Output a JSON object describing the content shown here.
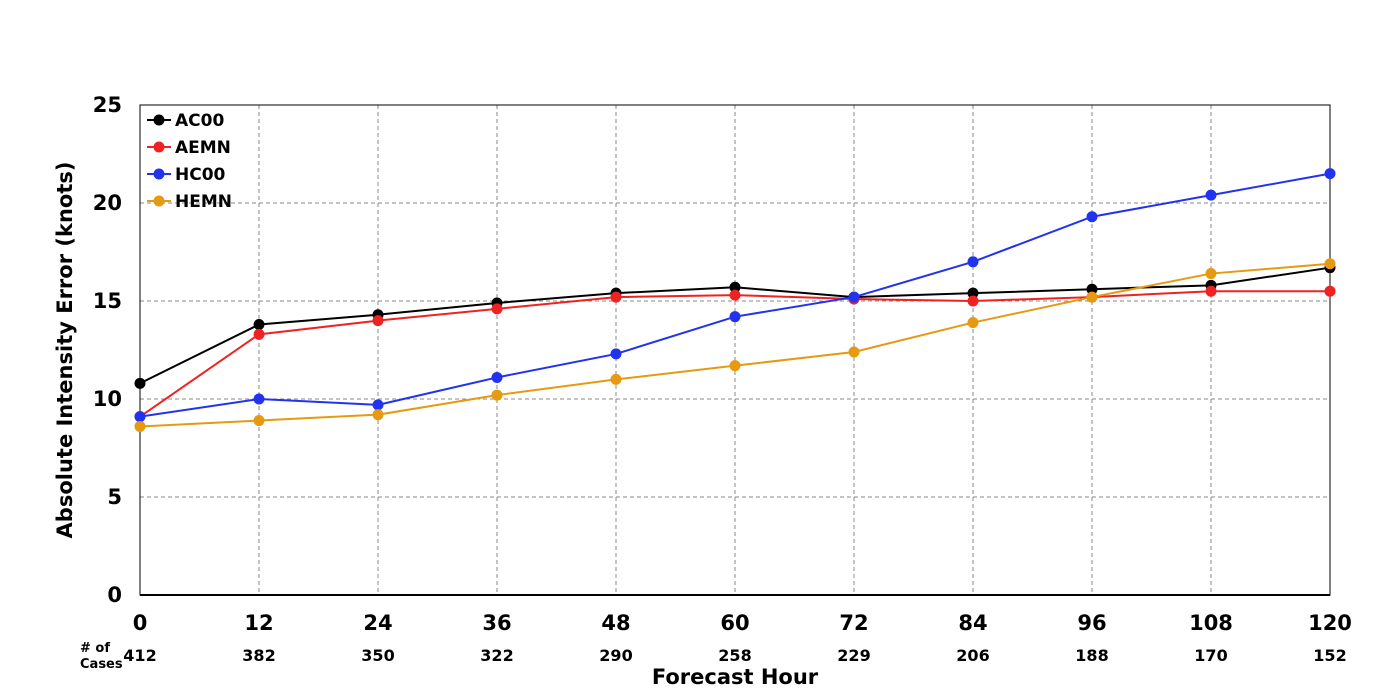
{
  "chart_data": {
    "type": "line",
    "title": "",
    "xlabel": "Forecast Hour",
    "ylabel": "Absolute Intensity Error (knots)",
    "x": [
      0,
      12,
      24,
      36,
      48,
      60,
      72,
      84,
      96,
      108,
      120
    ],
    "xlim": [
      0,
      120
    ],
    "ylim": [
      0,
      25
    ],
    "yticks": [
      0,
      5,
      10,
      15,
      20,
      25
    ],
    "grid": true,
    "legend_position": "top-left",
    "cases_label_line1": "# of",
    "cases_label_line2": "Cases",
    "cases": [
      412,
      382,
      350,
      322,
      290,
      258,
      229,
      206,
      188,
      170,
      152
    ],
    "series": [
      {
        "name": "AC00",
        "color": "#000000",
        "values": [
          10.8,
          13.8,
          14.3,
          14.9,
          15.4,
          15.7,
          15.2,
          15.4,
          15.6,
          15.8,
          16.7
        ]
      },
      {
        "name": "AEMN",
        "color": "#ee2222",
        "values": [
          9.1,
          13.3,
          14.0,
          14.6,
          15.2,
          15.3,
          15.1,
          15.0,
          15.2,
          15.5,
          15.5
        ]
      },
      {
        "name": "HC00",
        "color": "#2233ee",
        "values": [
          9.1,
          10.0,
          9.7,
          11.1,
          12.3,
          14.2,
          15.2,
          17.0,
          19.3,
          20.4,
          21.5
        ]
      },
      {
        "name": "HEMN",
        "color": "#e59a12",
        "values": [
          8.6,
          8.9,
          9.2,
          10.2,
          11.0,
          11.7,
          12.4,
          13.9,
          15.2,
          16.4,
          16.9
        ]
      }
    ]
  }
}
